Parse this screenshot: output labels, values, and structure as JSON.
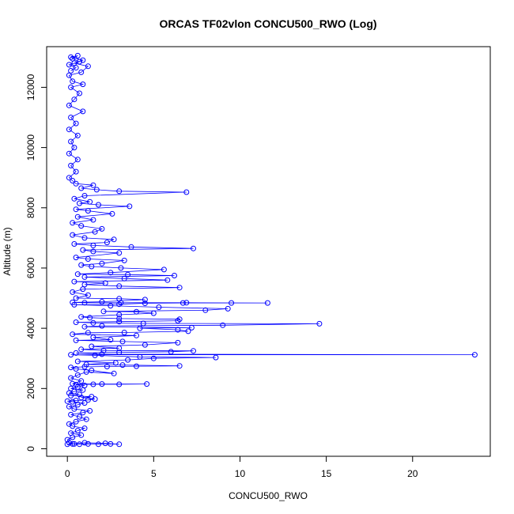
{
  "chart_data": {
    "type": "line",
    "title": "ORCAS TF02vlon CONCU500_RWO (Log)",
    "xlabel": "CONCU500_RWO",
    "ylabel": "Altitude (m)",
    "xlim": [
      -1.2,
      24.5
    ],
    "ylim": [
      -250,
      13350
    ],
    "xticks": [
      0,
      5,
      10,
      15,
      20
    ],
    "yticks": [
      0,
      2000,
      4000,
      6000,
      8000,
      10000,
      12000
    ],
    "grid": false,
    "legend": "none",
    "series": [
      {
        "color": "#0000ff",
        "marker": "open-circle",
        "points": [
          [
            0.0,
            150
          ],
          [
            0.3,
            160
          ],
          [
            0.7,
            150
          ],
          [
            1.2,
            160
          ],
          [
            1.8,
            150
          ],
          [
            2.5,
            160
          ],
          [
            3.0,
            150
          ],
          [
            2.2,
            180
          ],
          [
            1.0,
            200
          ],
          [
            0.4,
            160
          ],
          [
            0.1,
            200
          ],
          [
            0.0,
            300
          ],
          [
            0.3,
            380
          ],
          [
            0.8,
            450
          ],
          [
            0.2,
            520
          ],
          [
            0.6,
            600
          ],
          [
            1.0,
            680
          ],
          [
            0.3,
            750
          ],
          [
            0.1,
            820
          ],
          [
            0.5,
            900
          ],
          [
            1.1,
            980
          ],
          [
            0.7,
            1060
          ],
          [
            0.2,
            1130
          ],
          [
            0.9,
            1200
          ],
          [
            1.3,
            1260
          ],
          [
            0.4,
            1320
          ],
          [
            0.1,
            1400
          ],
          [
            0.6,
            1460
          ],
          [
            1.0,
            1520
          ],
          [
            0.3,
            1560
          ],
          [
            0.0,
            1580
          ],
          [
            0.5,
            1600
          ],
          [
            1.2,
            1620
          ],
          [
            1.6,
            1650
          ],
          [
            0.8,
            1700
          ],
          [
            1.4,
            1730
          ],
          [
            0.2,
            1760
          ],
          [
            0.7,
            1800
          ],
          [
            0.1,
            1850
          ],
          [
            0.4,
            1900
          ],
          [
            0.9,
            1950
          ],
          [
            0.2,
            2000
          ],
          [
            0.6,
            2050
          ],
          [
            1.0,
            2100
          ],
          [
            0.5,
            2130
          ],
          [
            1.5,
            2140
          ],
          [
            3.0,
            2140
          ],
          [
            4.6,
            2150
          ],
          [
            2.0,
            2150
          ],
          [
            0.3,
            2160
          ],
          [
            0.8,
            2250
          ],
          [
            0.2,
            2350
          ],
          [
            0.6,
            2450
          ],
          [
            1.1,
            2550
          ],
          [
            2.7,
            2500
          ],
          [
            1.4,
            2600
          ],
          [
            0.5,
            2650
          ],
          [
            0.2,
            2700
          ],
          [
            1.0,
            2720
          ],
          [
            2.3,
            2730
          ],
          [
            4.0,
            2740
          ],
          [
            6.5,
            2750
          ],
          [
            3.2,
            2780
          ],
          [
            1.1,
            2800
          ],
          [
            2.8,
            2850
          ],
          [
            0.6,
            2900
          ],
          [
            3.5,
            2950
          ],
          [
            5.0,
            3000
          ],
          [
            8.6,
            3030
          ],
          [
            4.2,
            3050
          ],
          [
            1.6,
            3100
          ],
          [
            0.2,
            3120
          ],
          [
            23.6,
            3120
          ],
          [
            2.0,
            3140
          ],
          [
            0.5,
            3180
          ],
          [
            3.0,
            3200
          ],
          [
            6.0,
            3220
          ],
          [
            7.3,
            3250
          ],
          [
            2.1,
            3260
          ],
          [
            0.8,
            3300
          ],
          [
            3.0,
            3340
          ],
          [
            1.4,
            3400
          ],
          [
            4.5,
            3450
          ],
          [
            6.4,
            3520
          ],
          [
            3.2,
            3560
          ],
          [
            0.5,
            3600
          ],
          [
            2.5,
            3620
          ],
          [
            1.5,
            3700
          ],
          [
            4.0,
            3760
          ],
          [
            0.3,
            3800
          ],
          [
            1.2,
            3850
          ],
          [
            3.3,
            3860
          ],
          [
            7.0,
            3900
          ],
          [
            6.4,
            3950
          ],
          [
            4.2,
            4000
          ],
          [
            7.2,
            4020
          ],
          [
            1.0,
            4050
          ],
          [
            2.0,
            4080
          ],
          [
            9.0,
            4100
          ],
          [
            14.6,
            4150
          ],
          [
            4.4,
            4160
          ],
          [
            1.5,
            4180
          ],
          [
            0.5,
            4200
          ],
          [
            3.0,
            4220
          ],
          [
            6.4,
            4250
          ],
          [
            6.5,
            4300
          ],
          [
            3.0,
            4320
          ],
          [
            1.3,
            4350
          ],
          [
            0.8,
            4380
          ],
          [
            3.0,
            4450
          ],
          [
            5.0,
            4500
          ],
          [
            4.0,
            4550
          ],
          [
            2.1,
            4560
          ],
          [
            8.0,
            4600
          ],
          [
            9.3,
            4650
          ],
          [
            5.3,
            4700
          ],
          [
            2.5,
            4750
          ],
          [
            0.4,
            4780
          ],
          [
            3.0,
            4800
          ],
          [
            4.5,
            4830
          ],
          [
            6.7,
            4840
          ],
          [
            9.5,
            4840
          ],
          [
            11.6,
            4840
          ],
          [
            6.9,
            4850
          ],
          [
            3.1,
            4850
          ],
          [
            1.0,
            4850
          ],
          [
            0.3,
            4860
          ],
          [
            2.0,
            4880
          ],
          [
            4.5,
            4950
          ],
          [
            3.0,
            4980
          ],
          [
            0.5,
            5000
          ],
          [
            1.2,
            5100
          ],
          [
            0.3,
            5200
          ],
          [
            0.9,
            5300
          ],
          [
            6.5,
            5350
          ],
          [
            3.0,
            5400
          ],
          [
            1.0,
            5450
          ],
          [
            2.2,
            5500
          ],
          [
            0.4,
            5550
          ],
          [
            5.8,
            5600
          ],
          [
            3.3,
            5650
          ],
          [
            1.0,
            5700
          ],
          [
            6.2,
            5750
          ],
          [
            3.5,
            5780
          ],
          [
            0.6,
            5800
          ],
          [
            2.5,
            5850
          ],
          [
            5.6,
            5950
          ],
          [
            3.1,
            6000
          ],
          [
            1.4,
            6050
          ],
          [
            0.8,
            6100
          ],
          [
            2.0,
            6150
          ],
          [
            3.3,
            6250
          ],
          [
            1.2,
            6300
          ],
          [
            0.5,
            6350
          ],
          [
            3.0,
            6500
          ],
          [
            1.5,
            6550
          ],
          [
            0.9,
            6600
          ],
          [
            7.3,
            6650
          ],
          [
            3.7,
            6700
          ],
          [
            1.5,
            6750
          ],
          [
            0.4,
            6800
          ],
          [
            2.3,
            6850
          ],
          [
            2.7,
            6950
          ],
          [
            1.0,
            7000
          ],
          [
            0.3,
            7100
          ],
          [
            1.6,
            7200
          ],
          [
            2.0,
            7300
          ],
          [
            0.8,
            7400
          ],
          [
            0.3,
            7500
          ],
          [
            1.5,
            7600
          ],
          [
            0.6,
            7700
          ],
          [
            2.6,
            7800
          ],
          [
            1.2,
            7900
          ],
          [
            0.5,
            7950
          ],
          [
            3.6,
            8050
          ],
          [
            1.8,
            8100
          ],
          [
            0.7,
            8150
          ],
          [
            1.3,
            8200
          ],
          [
            0.4,
            8300
          ],
          [
            1.0,
            8400
          ],
          [
            6.9,
            8520
          ],
          [
            3.0,
            8550
          ],
          [
            1.7,
            8600
          ],
          [
            0.8,
            8650
          ],
          [
            1.5,
            8750
          ],
          [
            0.5,
            8800
          ],
          [
            0.3,
            8900
          ],
          [
            0.1,
            9000
          ],
          [
            0.5,
            9200
          ],
          [
            0.2,
            9400
          ],
          [
            0.6,
            9600
          ],
          [
            0.1,
            9800
          ],
          [
            0.4,
            10000
          ],
          [
            0.2,
            10200
          ],
          [
            0.6,
            10400
          ],
          [
            0.1,
            10600
          ],
          [
            0.5,
            10800
          ],
          [
            0.2,
            11000
          ],
          [
            0.9,
            11200
          ],
          [
            0.1,
            11400
          ],
          [
            0.4,
            11600
          ],
          [
            0.7,
            11800
          ],
          [
            0.2,
            12000
          ],
          [
            0.9,
            12100
          ],
          [
            0.3,
            12200
          ],
          [
            0.1,
            12400
          ],
          [
            0.8,
            12500
          ],
          [
            1.2,
            12700
          ],
          [
            0.4,
            12800
          ],
          [
            0.9,
            12900
          ],
          [
            0.2,
            13000
          ],
          [
            0.6,
            13050
          ],
          [
            0.3,
            12950
          ],
          [
            0.7,
            12850
          ],
          [
            0.1,
            12750
          ],
          [
            0.5,
            12650
          ],
          [
            0.2,
            12550
          ]
        ]
      }
    ]
  }
}
